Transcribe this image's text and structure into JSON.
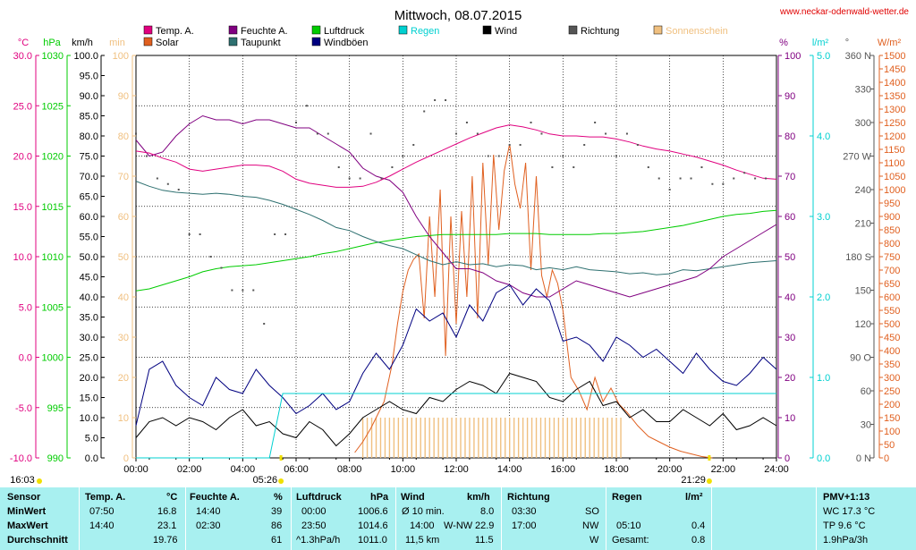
{
  "title": "Mittwoch, 08.07.2015",
  "website": "www.neckar-odenwald-wetter.de",
  "colors": {
    "temp": "#e0007f",
    "humidity": "#800080",
    "pressure": "#00cc00",
    "rain": "#00d0d0",
    "wind": "#000000",
    "direction": "#555555",
    "sunshine": "#f0c080",
    "solar": "#e06020",
    "dewpoint": "#2e7070",
    "gust": "#000080"
  },
  "legend": [
    {
      "label": "Temp. A.",
      "color": "#e0007f"
    },
    {
      "label": "Feuchte A.",
      "color": "#800080"
    },
    {
      "label": "Luftdruck",
      "color": "#00cc00"
    },
    {
      "label": "Regen",
      "color": "#00d0d0"
    },
    {
      "label": "Wind",
      "color": "#000000"
    },
    {
      "label": "Richtung",
      "color": "#555555"
    },
    {
      "label": "Sonnenschein",
      "color": "#f0c080"
    },
    {
      "label": "Solar",
      "color": "#e06020"
    },
    {
      "label": "Taupunkt",
      "color": "#2e7070"
    },
    {
      "label": "Windböen",
      "color": "#000080"
    }
  ],
  "axis_units": {
    "temp": "°C",
    "pressure": "hPa",
    "wind": "km/h",
    "sun_minutes": "min",
    "humidity": "%",
    "rain": "l/m²",
    "direction": "°",
    "solar": "W/m²"
  },
  "axis_ticks": {
    "temp": [
      "30.0",
      "25.0",
      "20.0",
      "15.0",
      "10.0",
      "5.0",
      "0.0",
      "-5.0",
      "-10.0"
    ],
    "pressure": [
      "1030",
      "1025",
      "1020",
      "1015",
      "1010",
      "1005",
      "1000",
      "995",
      "990"
    ],
    "wind": [
      "100.0",
      "95.0",
      "90.0",
      "85.0",
      "80.0",
      "75.0",
      "70.0",
      "65.0",
      "60.0",
      "55.0",
      "50.0",
      "45.0",
      "40.0",
      "35.0",
      "30.0",
      "25.0",
      "20.0",
      "15.0",
      "10.0",
      "5.0",
      "0.0"
    ],
    "sun_minutes": [
      "100",
      "90",
      "80",
      "70",
      "60",
      "50",
      "40",
      "30",
      "20",
      "10",
      "0"
    ],
    "humidity": [
      "100",
      "90",
      "80",
      "70",
      "60",
      "50",
      "40",
      "30",
      "20",
      "10",
      "0"
    ],
    "rain": [
      "5.0",
      "4.0",
      "3.0",
      "2.0",
      "1.0",
      "0.0"
    ],
    "direction": [
      "360 N",
      "330",
      "300",
      "270 W",
      "240",
      "210",
      "180 S",
      "150",
      "120",
      "90 O",
      "60",
      "30",
      "0 N"
    ],
    "solar": [
      "1500",
      "1450",
      "1400",
      "1350",
      "1300",
      "1250",
      "1200",
      "1150",
      "1100",
      "1050",
      "1000",
      "950",
      "900",
      "850",
      "800",
      "750",
      "700",
      "650",
      "600",
      "550",
      "500",
      "450",
      "400",
      "350",
      "300",
      "250",
      "200",
      "150",
      "100",
      "50",
      "0"
    ],
    "time": [
      "00:00",
      "02:00",
      "04:00",
      "06:00",
      "08:00",
      "10:00",
      "12:00",
      "14:00",
      "16:00",
      "18:00",
      "20:00",
      "22:00",
      "24:00"
    ]
  },
  "sun_markers": {
    "prev_sunset": "16:03",
    "sunrise": "05:26",
    "sunset": "21:29"
  },
  "chart_data": {
    "type": "line",
    "title": "Mittwoch, 08.07.2015",
    "x_unit": "hour",
    "xlim": [
      0,
      24
    ],
    "grid": true,
    "series": [
      {
        "name": "Temp. A.",
        "axis": "temp",
        "ylim": [
          -10,
          30
        ],
        "x": [
          0,
          0.5,
          1,
          1.5,
          2,
          2.5,
          3,
          3.5,
          4,
          4.5,
          5,
          5.5,
          6,
          6.5,
          7,
          7.5,
          8,
          8.5,
          9,
          9.5,
          10,
          10.5,
          11,
          11.5,
          12,
          12.5,
          13,
          13.5,
          14,
          14.5,
          15,
          15.5,
          16,
          16.5,
          17,
          17.5,
          18,
          18.5,
          19,
          19.5,
          20,
          20.5,
          21,
          21.5,
          22,
          22.5,
          23,
          23.5,
          24
        ],
        "y": [
          20.5,
          20.3,
          19.8,
          19.4,
          18.7,
          18.5,
          18.7,
          18.9,
          19.1,
          19.1,
          19.0,
          18.5,
          17.7,
          17.3,
          17.1,
          16.9,
          16.9,
          17.0,
          17.4,
          18.0,
          18.7,
          19.4,
          20.0,
          20.6,
          21.2,
          21.8,
          22.3,
          22.8,
          23.1,
          22.9,
          22.6,
          22.2,
          22.0,
          22.0,
          21.9,
          21.9,
          21.7,
          21.4,
          21.0,
          20.7,
          20.5,
          20.2,
          19.9,
          19.5,
          19.1,
          18.6,
          18.2,
          17.8,
          17.7
        ]
      },
      {
        "name": "Feuchte A.",
        "axis": "humidity",
        "ylim": [
          0,
          100
        ],
        "x": [
          0,
          0.5,
          1,
          1.5,
          2,
          2.5,
          3,
          3.5,
          4,
          4.5,
          5,
          5.5,
          6,
          6.5,
          7,
          7.5,
          8,
          8.5,
          9,
          9.5,
          10,
          10.5,
          11,
          11.5,
          12,
          12.5,
          13,
          13.5,
          14,
          14.5,
          15,
          15.5,
          16,
          16.5,
          17,
          17.5,
          18,
          18.5,
          19,
          19.5,
          20,
          20.5,
          21,
          21.5,
          22,
          22.5,
          23,
          23.5,
          24
        ],
        "y": [
          79,
          75,
          76,
          80,
          83,
          85,
          84,
          84,
          83,
          84,
          84,
          83,
          82,
          82,
          80,
          78,
          76,
          72,
          70,
          69,
          66,
          60,
          55,
          51,
          47,
          47,
          46,
          44,
          43,
          41,
          40,
          40,
          42,
          44,
          43,
          42,
          41,
          40,
          41,
          42,
          43,
          44,
          45,
          47,
          50,
          52,
          54,
          56,
          58
        ]
      },
      {
        "name": "Luftdruck",
        "axis": "pressure",
        "ylim": [
          990,
          1030
        ],
        "x": [
          0,
          0.5,
          1,
          1.5,
          2,
          2.5,
          3,
          3.5,
          4,
          4.5,
          5,
          5.5,
          6,
          6.5,
          7,
          7.5,
          8,
          8.5,
          9,
          9.5,
          10,
          10.5,
          11,
          11.5,
          12,
          12.5,
          13,
          13.5,
          14,
          14.5,
          15,
          15.5,
          16,
          16.5,
          17,
          17.5,
          18,
          18.5,
          19,
          19.5,
          20,
          20.5,
          21,
          21.5,
          22,
          22.5,
          23,
          23.5,
          24
        ],
        "y": [
          1006.6,
          1006.8,
          1007.2,
          1007.6,
          1008.0,
          1008.5,
          1008.8,
          1009.0,
          1009.1,
          1009.2,
          1009.4,
          1009.6,
          1009.8,
          1010.0,
          1010.3,
          1010.5,
          1010.8,
          1011.1,
          1011.4,
          1011.6,
          1011.8,
          1012.0,
          1012.1,
          1012.2,
          1012.2,
          1012.2,
          1012.2,
          1012.2,
          1012.3,
          1012.3,
          1012.3,
          1012.2,
          1012.2,
          1012.2,
          1012.2,
          1012.3,
          1012.3,
          1012.4,
          1012.5,
          1012.7,
          1012.9,
          1013.1,
          1013.4,
          1013.7,
          1014.0,
          1014.2,
          1014.3,
          1014.5,
          1014.6
        ]
      },
      {
        "name": "Taupunkt",
        "axis": "temp",
        "ylim": [
          -10,
          30
        ],
        "x": [
          0,
          0.5,
          1,
          1.5,
          2,
          2.5,
          3,
          3.5,
          4,
          4.5,
          5,
          5.5,
          6,
          6.5,
          7,
          7.5,
          8,
          8.5,
          9,
          9.5,
          10,
          10.5,
          11,
          11.5,
          12,
          12.5,
          13,
          13.5,
          14,
          14.5,
          15,
          15.5,
          16,
          16.5,
          17,
          17.5,
          18,
          18.5,
          19,
          19.5,
          20,
          20.5,
          21,
          21.5,
          22,
          22.5,
          23,
          23.5,
          24
        ],
        "y": [
          17.5,
          17.0,
          16.6,
          16.4,
          16.3,
          16.2,
          16.3,
          16.2,
          16.0,
          15.9,
          15.6,
          15.2,
          14.7,
          14.2,
          13.6,
          12.9,
          12.6,
          12.0,
          11.5,
          11.1,
          10.8,
          10.2,
          9.6,
          9.2,
          9.5,
          9.2,
          9.3,
          9.0,
          9.2,
          9.1,
          8.7,
          8.9,
          8.7,
          9.0,
          8.7,
          8.6,
          8.5,
          8.3,
          8.4,
          8.2,
          8.3,
          8.7,
          8.6,
          8.8,
          9.0,
          9.2,
          9.4,
          9.5,
          9.6
        ]
      },
      {
        "name": "Wind",
        "axis": "wind",
        "ylim": [
          0,
          100
        ],
        "x": [
          0,
          0.5,
          1,
          1.5,
          2,
          2.5,
          3,
          3.5,
          4,
          4.5,
          5,
          5.5,
          6,
          6.5,
          7,
          7.5,
          8,
          8.5,
          9,
          9.5,
          10,
          10.5,
          11,
          11.5,
          12,
          12.5,
          13,
          13.5,
          14,
          14.5,
          15,
          15.5,
          16,
          16.5,
          17,
          17.5,
          18,
          18.5,
          19,
          19.5,
          20,
          20.5,
          21,
          21.5,
          22,
          22.5,
          23,
          23.5,
          24
        ],
        "y": [
          5,
          9,
          10,
          8,
          10,
          9,
          7,
          10,
          12,
          8,
          9,
          6,
          5,
          9,
          7,
          3,
          6,
          10,
          12,
          14,
          12,
          11,
          15,
          14,
          17,
          19,
          18,
          16,
          21,
          20,
          19,
          15,
          14,
          17,
          19,
          13,
          14,
          10,
          12,
          9,
          9,
          12,
          10,
          8,
          11,
          7,
          8,
          10,
          8
        ]
      },
      {
        "name": "Windböen",
        "axis": "wind",
        "ylim": [
          0,
          100
        ],
        "x": [
          0,
          0.5,
          1,
          1.5,
          2,
          2.5,
          3,
          3.5,
          4,
          4.5,
          5,
          5.5,
          6,
          6.5,
          7,
          7.5,
          8,
          8.5,
          9,
          9.5,
          10,
          10.5,
          11,
          11.5,
          12,
          12.5,
          13,
          13.5,
          14,
          14.5,
          15,
          15.5,
          16,
          16.5,
          17,
          17.5,
          18,
          18.5,
          19,
          19.5,
          20,
          20.5,
          21,
          21.5,
          22,
          22.5,
          23,
          23.5,
          24
        ],
        "y": [
          8,
          22,
          24,
          18,
          15,
          13,
          20,
          17,
          16,
          22,
          18,
          15,
          11,
          13,
          16,
          12,
          14,
          21,
          26,
          22,
          28,
          37,
          34,
          36,
          30,
          38,
          34,
          41,
          43,
          38,
          42,
          39,
          29,
          30,
          28,
          24,
          30,
          28,
          25,
          27,
          24,
          21,
          26,
          22,
          19,
          18,
          21,
          25,
          22
        ]
      },
      {
        "name": "Solar",
        "axis": "solar",
        "ylim": [
          0,
          1500
        ],
        "x": [
          8.2,
          8.5,
          8.8,
          9.0,
          9.3,
          9.6,
          9.8,
          10.0,
          10.2,
          10.4,
          10.6,
          10.8,
          11.0,
          11.2,
          11.4,
          11.6,
          11.8,
          12.0,
          12.2,
          12.4,
          12.6,
          12.8,
          13.0,
          13.2,
          13.4,
          13.6,
          13.8,
          14.0,
          14.2,
          14.4,
          14.6,
          14.8,
          15.0,
          15.2,
          15.4,
          15.6,
          15.8,
          16.0,
          16.3,
          16.6,
          16.9,
          17.2,
          17.5,
          17.8,
          18.1,
          18.4,
          18.8,
          19.2,
          19.6,
          20.0,
          20.4,
          20.8,
          21.2,
          21.6
        ],
        "y": [
          20,
          60,
          110,
          150,
          210,
          350,
          500,
          620,
          700,
          740,
          760,
          520,
          900,
          600,
          1000,
          380,
          900,
          500,
          920,
          600,
          1050,
          520,
          1100,
          720,
          1130,
          850,
          1070,
          1170,
          1020,
          930,
          1100,
          700,
          1050,
          680,
          600,
          700,
          650,
          550,
          300,
          250,
          180,
          300,
          210,
          260,
          200,
          170,
          120,
          80,
          60,
          40,
          25,
          15,
          5,
          0
        ]
      },
      {
        "name": "Regen",
        "axis": "rain",
        "ylim": [
          0,
          5
        ],
        "x": [
          0,
          5.0,
          5.5,
          5.6,
          24
        ],
        "y": [
          0,
          0,
          0.8,
          0.8,
          0.8
        ]
      },
      {
        "name": "Sonnenschein",
        "axis": "sun_minutes",
        "ylim": [
          0,
          100
        ],
        "x_start": 8.5,
        "x_end": 18.2,
        "step": 0.1667,
        "value": 10
      },
      {
        "name": "Richtung",
        "axis": "direction",
        "ylim": [
          0,
          360
        ],
        "x": [
          0,
          0.4,
          0.8,
          1.2,
          1.6,
          2,
          2.4,
          2.8,
          3.2,
          3.6,
          4,
          4.4,
          4.8,
          5.2,
          5.6,
          6,
          6.4,
          6.8,
          7.2,
          7.6,
          8,
          8.4,
          8.8,
          9.2,
          9.6,
          10,
          10.4,
          10.8,
          11.2,
          11.6,
          12,
          12.4,
          12.8,
          13.2,
          13.6,
          14,
          14.4,
          14.8,
          15.2,
          15.6,
          16,
          16.4,
          16.8,
          17.2,
          17.6,
          18,
          18.4,
          18.8,
          19.2,
          19.6,
          20,
          20.4,
          20.8,
          21.2,
          21.6,
          22,
          22.4,
          22.8,
          23.2,
          23.6
        ],
        "y": [
          290,
          270,
          250,
          245,
          240,
          200,
          200,
          180,
          170,
          150,
          150,
          150,
          120,
          200,
          200,
          300,
          315,
          290,
          290,
          260,
          250,
          250,
          290,
          250,
          260,
          270,
          280,
          310,
          320,
          320,
          290,
          300,
          290,
          270,
          270,
          280,
          280,
          300,
          290,
          260,
          270,
          260,
          280,
          300,
          290,
          270,
          290,
          280,
          260,
          250,
          240,
          250,
          250,
          260,
          245,
          245,
          250,
          255,
          250,
          250
        ]
      }
    ]
  },
  "summary": {
    "headers": {
      "sensor": "Sensor",
      "temp": "Temp. A.",
      "temp_unit": "°C",
      "hum": "Feuchte A.",
      "hum_unit": "%",
      "press": "Luftdruck",
      "press_unit": "hPa",
      "wind": "Wind",
      "wind_unit": "km/h",
      "dir": "Richtung",
      "rain": "Regen",
      "rain_unit": "l/m²",
      "pmv": "PMV+1:13"
    },
    "rows": [
      {
        "label": "MinWert",
        "temp_time": "07:50",
        "temp_val": "16.8",
        "hum_time": "14:40",
        "hum_val": "39",
        "press_time": "00:00",
        "press_val": "1006.6",
        "wind_time": "Ø 10 min.",
        "wind_val": "8.0",
        "dir_time": "03:30",
        "dir_val": "SO",
        "rain_time": "",
        "rain_val": "",
        "pmv": "WC 17.3 °C"
      },
      {
        "label": "MaxWert",
        "temp_time": "14:40",
        "temp_val": "23.1",
        "hum_time": "02:30",
        "hum_val": "86",
        "press_time": "23:50",
        "press_val": "1014.6",
        "wind_time": "14:00",
        "wind_mid": "W-NW",
        "wind_val": "22.9",
        "dir_time": "17:00",
        "dir_val": "NW",
        "rain_time": "05:10",
        "rain_val": "0.4",
        "pmv": "TP 9.6 °C"
      },
      {
        "label": "Durchschnitt",
        "temp_time": "",
        "temp_val": "19.76",
        "hum_time": "",
        "hum_val": "61",
        "press_time": "^1.3hPa/h",
        "press_val": "1011.0",
        "wind_time": "11,5 km",
        "wind_val": "11.5",
        "dir_time": "",
        "dir_val": "W",
        "rain_time": "Gesamt:",
        "rain_val": "0.8",
        "pmv": "1.9hPa/3h"
      }
    ]
  }
}
